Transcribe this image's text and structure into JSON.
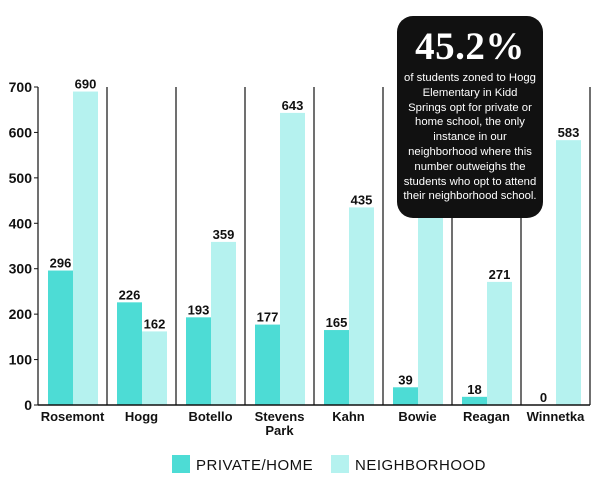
{
  "chart_data": {
    "type": "bar",
    "categories": [
      [
        "Rosemont"
      ],
      [
        "Hogg"
      ],
      [
        "Botello"
      ],
      [
        "Stevens",
        "Park"
      ],
      [
        "Kahn"
      ],
      [
        "Bowie"
      ],
      [
        "Reagan"
      ],
      [
        "Winnetka"
      ]
    ],
    "series": [
      {
        "name": "PRIVATE/HOME",
        "color": "#4ddcd5",
        "values": [
          296,
          226,
          193,
          177,
          165,
          39,
          18,
          0
        ]
      },
      {
        "name": "NEIGHBORHOOD",
        "color": "#b5f2ef",
        "values": [
          690,
          162,
          359,
          643,
          435,
          417,
          271,
          583
        ]
      }
    ],
    "yticks": [
      0,
      100,
      200,
      300,
      400,
      500,
      600,
      700
    ],
    "ylim": [
      0,
      700
    ],
    "legend_position": "bottom",
    "grid": false
  },
  "callout": {
    "headline": "45.2%",
    "text": "of students zoned to Hogg Elementary in Kidd Springs opt for private or home school, the only instance in our neighborhood where this number outweighs the students who opt to attend their neighborhood school."
  }
}
